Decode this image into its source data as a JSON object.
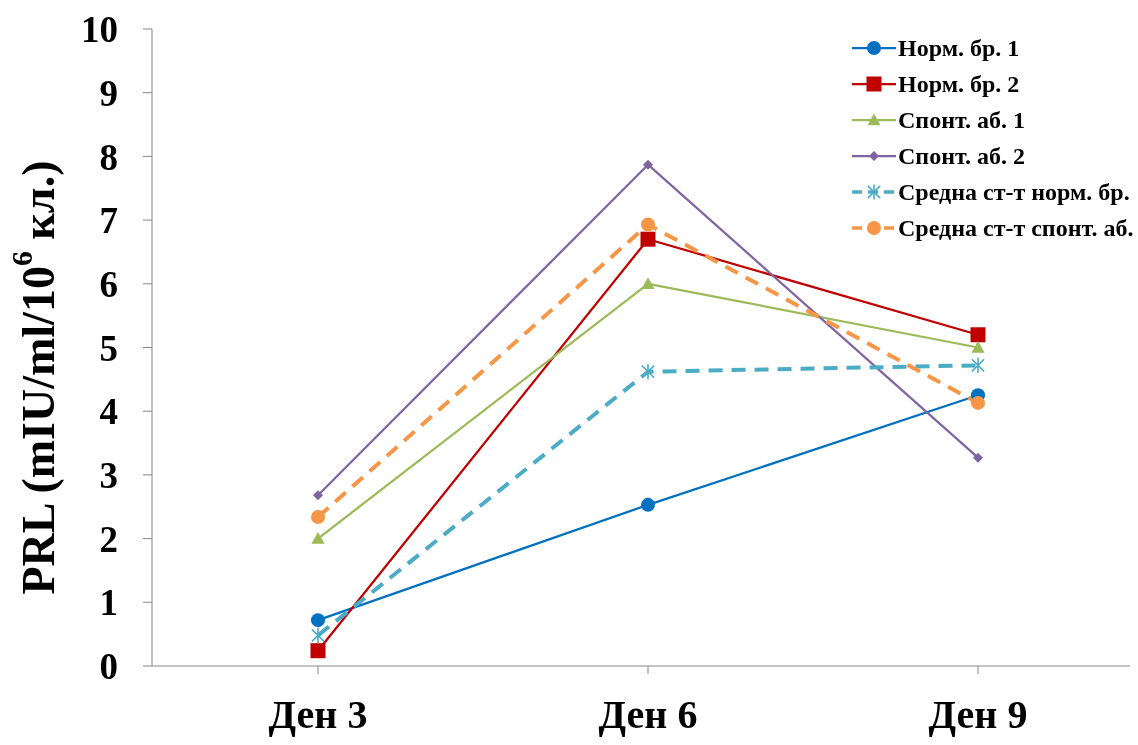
{
  "chart_data": {
    "type": "line",
    "ylabel": "PRL (mIU/ml/10$^{6}$ кл.)",
    "categories": [
      "Ден 3",
      "Ден 6",
      "Ден 9"
    ],
    "series": [
      {
        "name": "Норм. бр. 1",
        "color": "#0070c0",
        "marker": "circle",
        "values": [
          0.72,
          2.53,
          4.25
        ]
      },
      {
        "name": "Норм. бр. 2",
        "color": "#c00000",
        "marker": "square",
        "values": [
          0.24,
          6.7,
          5.2
        ]
      },
      {
        "name": "Спонт. аб. 1",
        "color": "#9bbb59",
        "marker": "triangle",
        "values": [
          2.0,
          6.0,
          5.0
        ]
      },
      {
        "name": "Спонт. аб. 2",
        "color": "#8064a2",
        "marker": "diamond",
        "values": [
          2.68,
          7.87,
          3.27
        ]
      },
      {
        "name": "Средна ст-т норм. бр.",
        "color": "#4bacc6",
        "marker": "cross",
        "line_style": "dashed",
        "values": [
          0.48,
          4.62,
          4.72
        ]
      },
      {
        "name": "Средна ст-т спонт. аб.",
        "color": "#f79646",
        "marker": "circle",
        "line_style": "dashed",
        "values": [
          2.34,
          6.93,
          4.13
        ]
      }
    ],
    "ylim": [
      0,
      10
    ],
    "yticks": [
      0,
      1,
      2,
      3,
      4,
      5,
      6,
      7,
      8,
      9,
      10
    ],
    "legend": "top right"
  }
}
